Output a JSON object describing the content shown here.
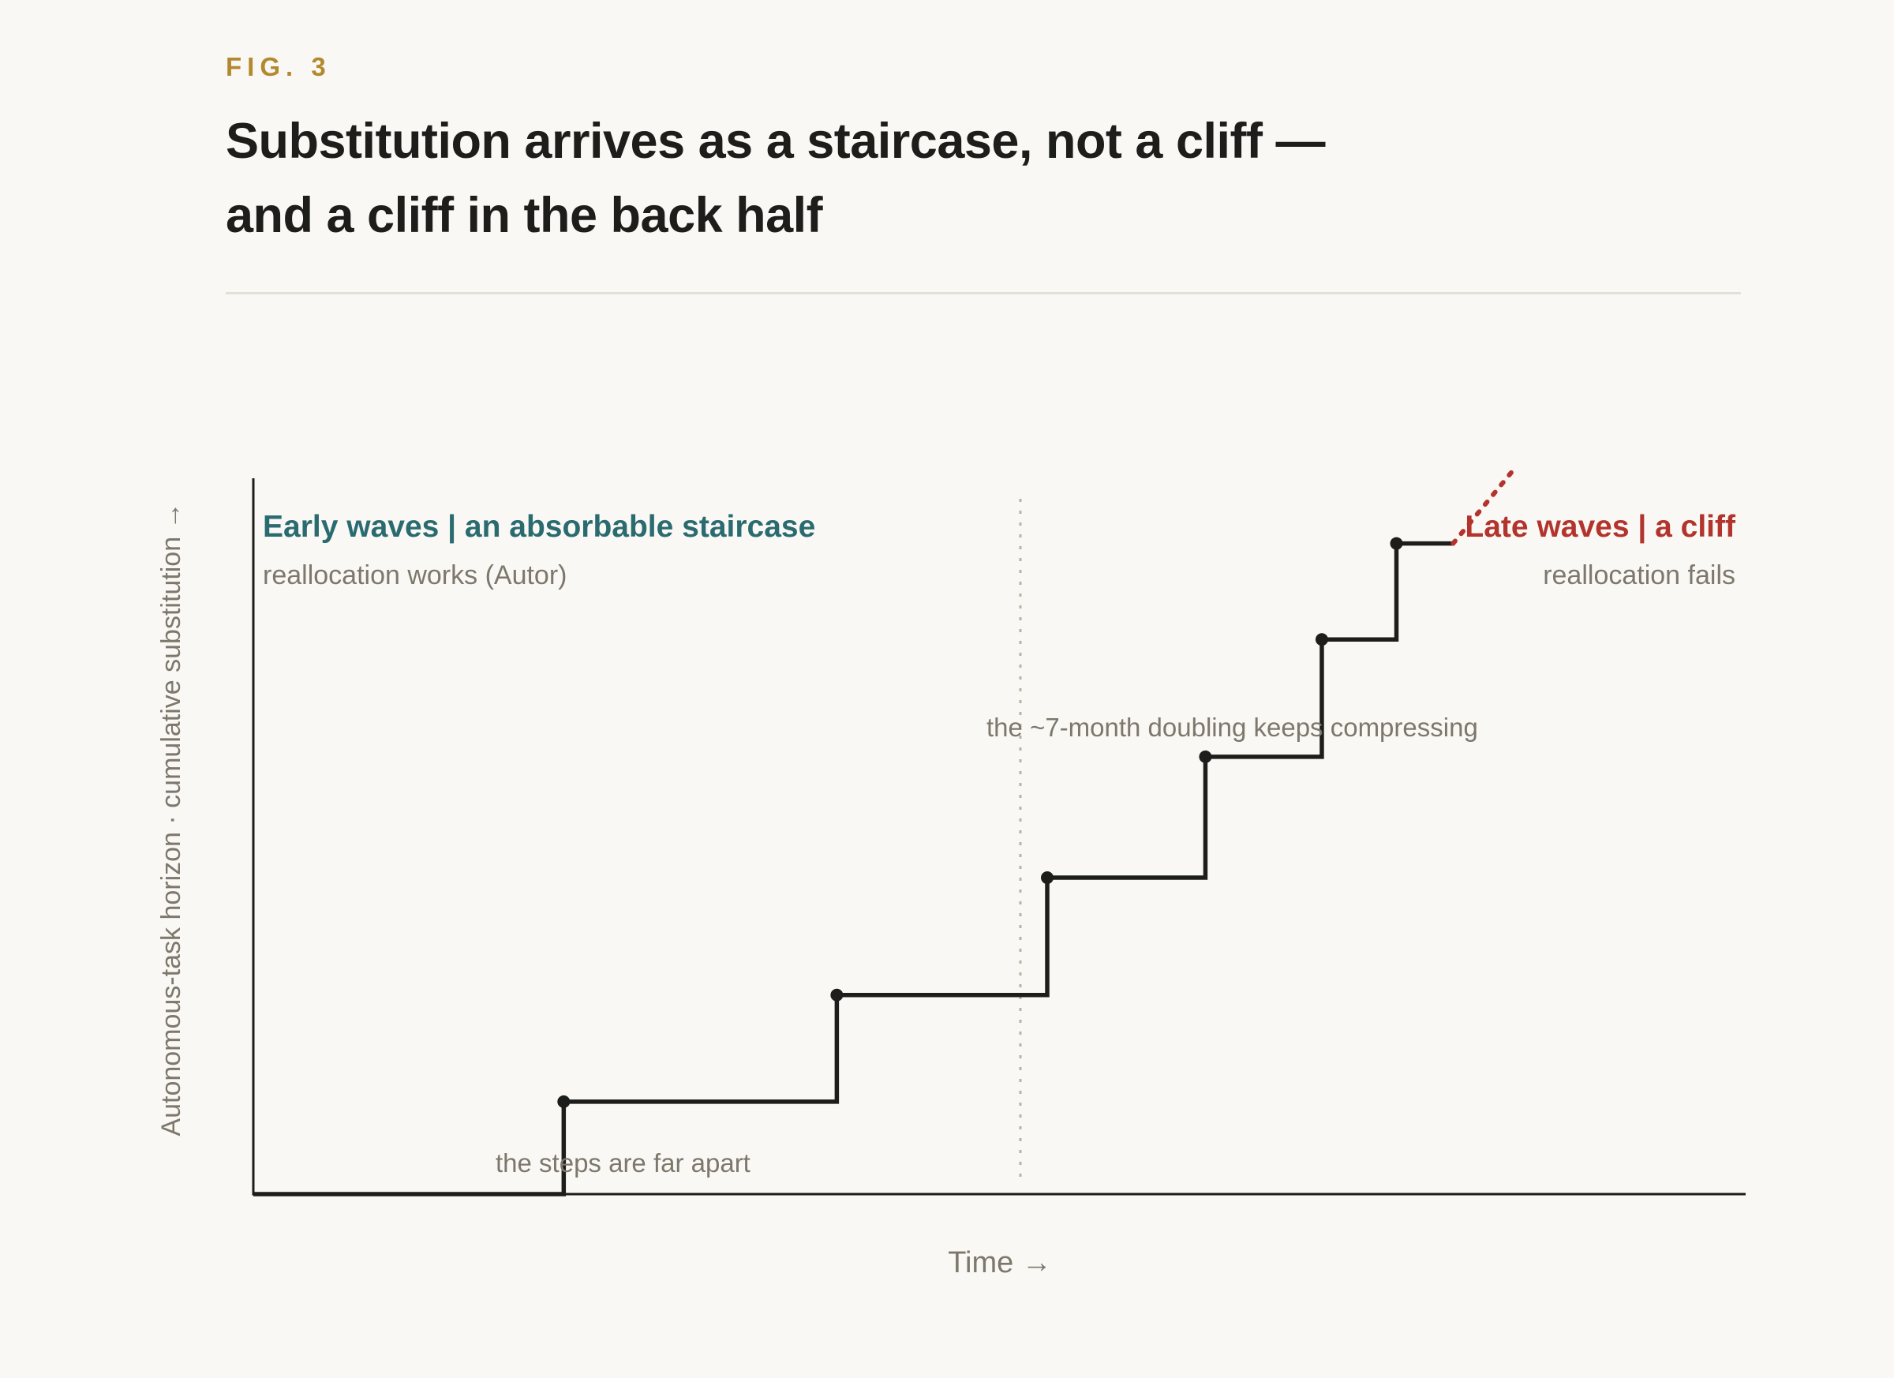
{
  "figure": {
    "label": "FIG. 3",
    "title_line1": "Substitution arrives as a staircase, not a cliff —",
    "title_line2": "and a cliff in the back half"
  },
  "colors": {
    "background": "#faf8f4",
    "accent_gold": "#b3892f",
    "early_teal": "#2a6b70",
    "late_red": "#b2342d",
    "line": "#1d1d1b",
    "annotation_gray": "#7d776c",
    "rule": "#e3e1d6"
  },
  "chart_data": {
    "type": "line",
    "step": "post",
    "xlabel": "Time →",
    "ylabel": "Autonomous-task horizon · cumulative substitution →",
    "x_ticks": [],
    "y_ticks": [],
    "xlim": [
      0,
      100
    ],
    "ylim": [
      0,
      100
    ],
    "grid": false,
    "legend": null,
    "series": [
      {
        "name": "",
        "style": "solid step",
        "points": [
          {
            "x": 0,
            "y": 0
          },
          {
            "x": 20.8,
            "y": 13
          },
          {
            "x": 39.1,
            "y": 28
          },
          {
            "x": 53.2,
            "y": 44.5
          },
          {
            "x": 63.8,
            "y": 61.5
          },
          {
            "x": 71.6,
            "y": 78
          },
          {
            "x": 76.6,
            "y": 91.5
          }
        ],
        "end_x": 80.4
      },
      {
        "name": "",
        "style": "dotted",
        "points": [
          {
            "x": 80.4,
            "y": 91.5
          },
          {
            "x": 84.5,
            "y": 102
          }
        ]
      }
    ],
    "divider_x": 51.4,
    "annotations": {
      "early_heading": "Early waves | an absorbable staircase",
      "early_sub": "reallocation works (Autor)",
      "late_heading": "Late waves | a cliff",
      "late_sub": "reallocation fails",
      "steps_note": "the steps are far apart",
      "compress_note": "the ~7-month doubling keeps compressing"
    }
  }
}
